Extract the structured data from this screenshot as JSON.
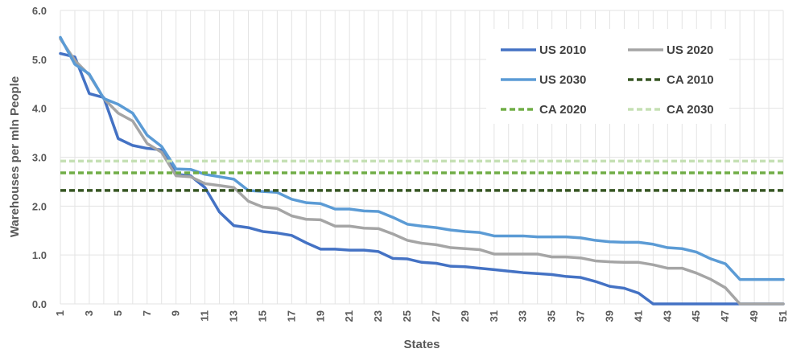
{
  "chart_data": {
    "type": "line",
    "title": "",
    "xlabel": "States",
    "ylabel": "Warehouses per mln People",
    "ylim": [
      0,
      6
    ],
    "yticks": [
      "0.0",
      "1.0",
      "2.0",
      "3.0",
      "4.0",
      "5.0",
      "6.0"
    ],
    "x": [
      1,
      2,
      3,
      4,
      5,
      6,
      7,
      8,
      9,
      10,
      11,
      12,
      13,
      14,
      15,
      16,
      17,
      18,
      19,
      20,
      21,
      22,
      23,
      24,
      25,
      26,
      27,
      28,
      29,
      30,
      31,
      32,
      33,
      34,
      35,
      36,
      37,
      38,
      39,
      40,
      41,
      42,
      43,
      44,
      45,
      46,
      47,
      48,
      49,
      50,
      51
    ],
    "xticks": [
      "1",
      "3",
      "5",
      "7",
      "9",
      "11",
      "13",
      "15",
      "17",
      "19",
      "21",
      "23",
      "25",
      "27",
      "29",
      "31",
      "33",
      "35",
      "37",
      "39",
      "41",
      "43",
      "45",
      "47",
      "49",
      "51"
    ],
    "grid": true,
    "legend_position": "top-right",
    "series": [
      {
        "name": "US 2010",
        "color": "#4472C4",
        "dash": false,
        "values": [
          5.12,
          5.05,
          4.3,
          4.22,
          3.38,
          3.24,
          3.18,
          3.15,
          2.65,
          2.62,
          2.38,
          1.88,
          1.6,
          1.56,
          1.48,
          1.45,
          1.4,
          1.25,
          1.12,
          1.12,
          1.1,
          1.1,
          1.07,
          0.93,
          0.92,
          0.85,
          0.83,
          0.77,
          0.76,
          0.73,
          0.7,
          0.67,
          0.64,
          0.62,
          0.6,
          0.56,
          0.54,
          0.46,
          0.36,
          0.32,
          0.22,
          0,
          0,
          0,
          0,
          0,
          0,
          0,
          0,
          0,
          0
        ]
      },
      {
        "name": "US 2020",
        "color": "#A5A5A5",
        "dash": false,
        "values": [
          5.42,
          4.98,
          4.68,
          4.2,
          3.9,
          3.74,
          3.28,
          3.1,
          2.62,
          2.6,
          2.46,
          2.42,
          2.38,
          2.1,
          1.98,
          1.95,
          1.8,
          1.73,
          1.72,
          1.59,
          1.59,
          1.55,
          1.54,
          1.43,
          1.3,
          1.24,
          1.21,
          1.15,
          1.13,
          1.11,
          1.02,
          1.02,
          1.02,
          1.02,
          0.96,
          0.96,
          0.94,
          0.88,
          0.86,
          0.85,
          0.85,
          0.8,
          0.73,
          0.73,
          0.63,
          0.5,
          0.33,
          0,
          0,
          0,
          0
        ]
      },
      {
        "name": "US 2030",
        "color": "#5B9BD5",
        "dash": false,
        "values": [
          5.45,
          4.9,
          4.7,
          4.2,
          4.08,
          3.9,
          3.45,
          3.22,
          2.76,
          2.75,
          2.65,
          2.6,
          2.55,
          2.32,
          2.3,
          2.28,
          2.14,
          2.07,
          2.05,
          1.94,
          1.94,
          1.9,
          1.89,
          1.77,
          1.63,
          1.59,
          1.56,
          1.51,
          1.48,
          1.46,
          1.39,
          1.39,
          1.39,
          1.37,
          1.37,
          1.37,
          1.35,
          1.3,
          1.27,
          1.26,
          1.26,
          1.22,
          1.15,
          1.13,
          1.06,
          0.92,
          0.82,
          0.5,
          0.5,
          0.5,
          0.5
        ]
      },
      {
        "name": "CA 2010",
        "color": "#375623",
        "dash": true,
        "constant": 2.32
      },
      {
        "name": "CA 2020",
        "color": "#70AD47",
        "dash": true,
        "constant": 2.68
      },
      {
        "name": "CA 2030",
        "color": "#C5E0B4",
        "dash": true,
        "constant": 2.92
      }
    ]
  }
}
